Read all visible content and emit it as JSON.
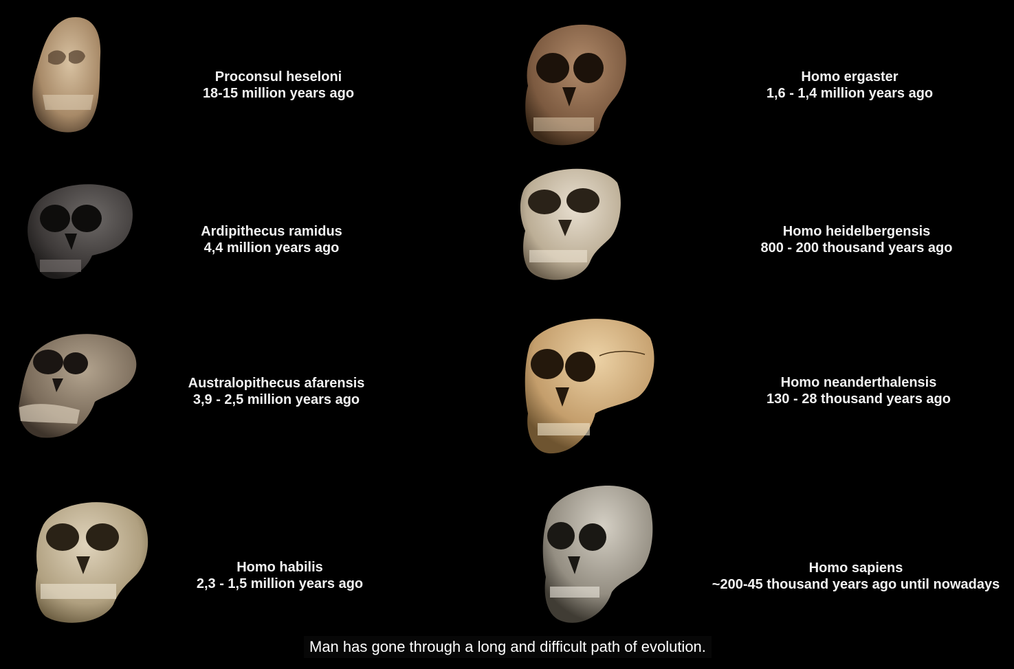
{
  "species": [
    {
      "name": "Proconsul heseloni",
      "period": "18-15 million years ago",
      "skull_color": "#b79a78"
    },
    {
      "name": "Ardipithecus ramidus",
      "period": "4,4 million years ago",
      "skull_color": "#4a4645"
    },
    {
      "name": "Australopithecus afarensis",
      "period": "3,9 - 2,5 million years ago",
      "skull_color": "#8a7b6a"
    },
    {
      "name": "Homo habilis",
      "period": "2,3 - 1,5 million years ago",
      "skull_color": "#b8a888"
    },
    {
      "name": "Homo ergaster",
      "period": "1,6 - 1,4 million years ago",
      "skull_color": "#8c6a50"
    },
    {
      "name": "Homo heidelbergensis",
      "period": "800 - 200 thousand years ago",
      "skull_color": "#c9bba5"
    },
    {
      "name": "Homo neanderthalensis",
      "period": "130 - 28 thousand years ago",
      "skull_color": "#cba778"
    },
    {
      "name": "Homo sapiens",
      "period": "~200-45 thousand years ago until nowadays",
      "skull_color": "#9c968b"
    }
  ],
  "subtitle": "Man has gone through a long and difficult path of evolution."
}
